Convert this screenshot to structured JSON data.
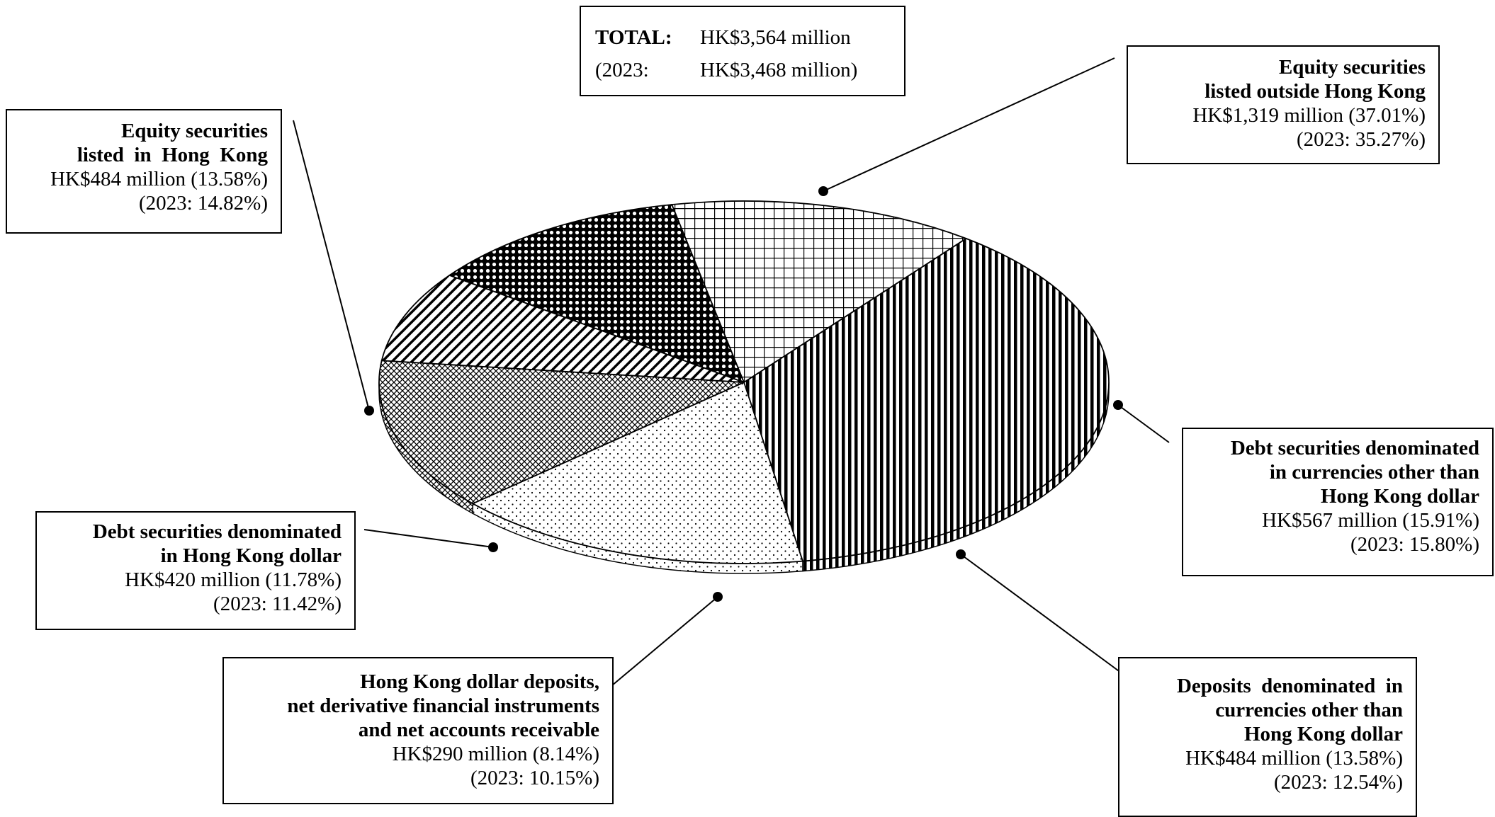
{
  "total": {
    "label": "TOTAL:",
    "value": "HK$3,564 million",
    "prior_label": "(2023:",
    "prior_value": "HK$3,468 million)"
  },
  "chart_data": {
    "type": "pie",
    "unit": "HK$ million",
    "total": 3564,
    "slices": [
      {
        "name_lines": [
          "Equity securities",
          "listed outside Hong Kong"
        ],
        "value": 1319,
        "percent": 37.01,
        "amount_text": "HK$1,319 million (37.01%)",
        "prior_text": "(2023: 35.27%)",
        "pattern": "vertical-stripes"
      },
      {
        "name_lines": [
          "Debt securities denominated",
          "in currencies other than",
          "Hong Kong dollar"
        ],
        "value": 567,
        "percent": 15.91,
        "amount_text": "HK$567 million (15.91%)",
        "prior_text": "(2023: 15.80%)",
        "pattern": "sparse-dots"
      },
      {
        "name_lines": [
          "Deposits  denominated  in",
          "currencies other than",
          "Hong Kong dollar"
        ],
        "value": 484,
        "percent": 13.58,
        "amount_text": "HK$484 million (13.58%)",
        "prior_text": "(2023: 12.54%)",
        "pattern": "crosshatch-diagonal"
      },
      {
        "name_lines": [
          "Hong Kong dollar deposits,",
          "net derivative financial instruments",
          "and net accounts receivable"
        ],
        "value": 290,
        "percent": 8.14,
        "amount_text": "HK$290 million (8.14%)",
        "prior_text": "(2023: 10.15%)",
        "pattern": "diagonal-stripes"
      },
      {
        "name_lines": [
          "Debt securities denominated",
          "in Hong Kong dollar"
        ],
        "value": 420,
        "percent": 11.78,
        "amount_text": "HK$420 million (11.78%)",
        "prior_text": "(2023: 11.42%)",
        "pattern": "dense-dots"
      },
      {
        "name_lines": [
          "Equity securities",
          "listed  in  Hong  Kong"
        ],
        "value": 484,
        "percent": 13.58,
        "amount_text": "HK$484 million (13.58%)",
        "prior_text": "(2023: 14.82%)",
        "pattern": "grid"
      }
    ]
  }
}
